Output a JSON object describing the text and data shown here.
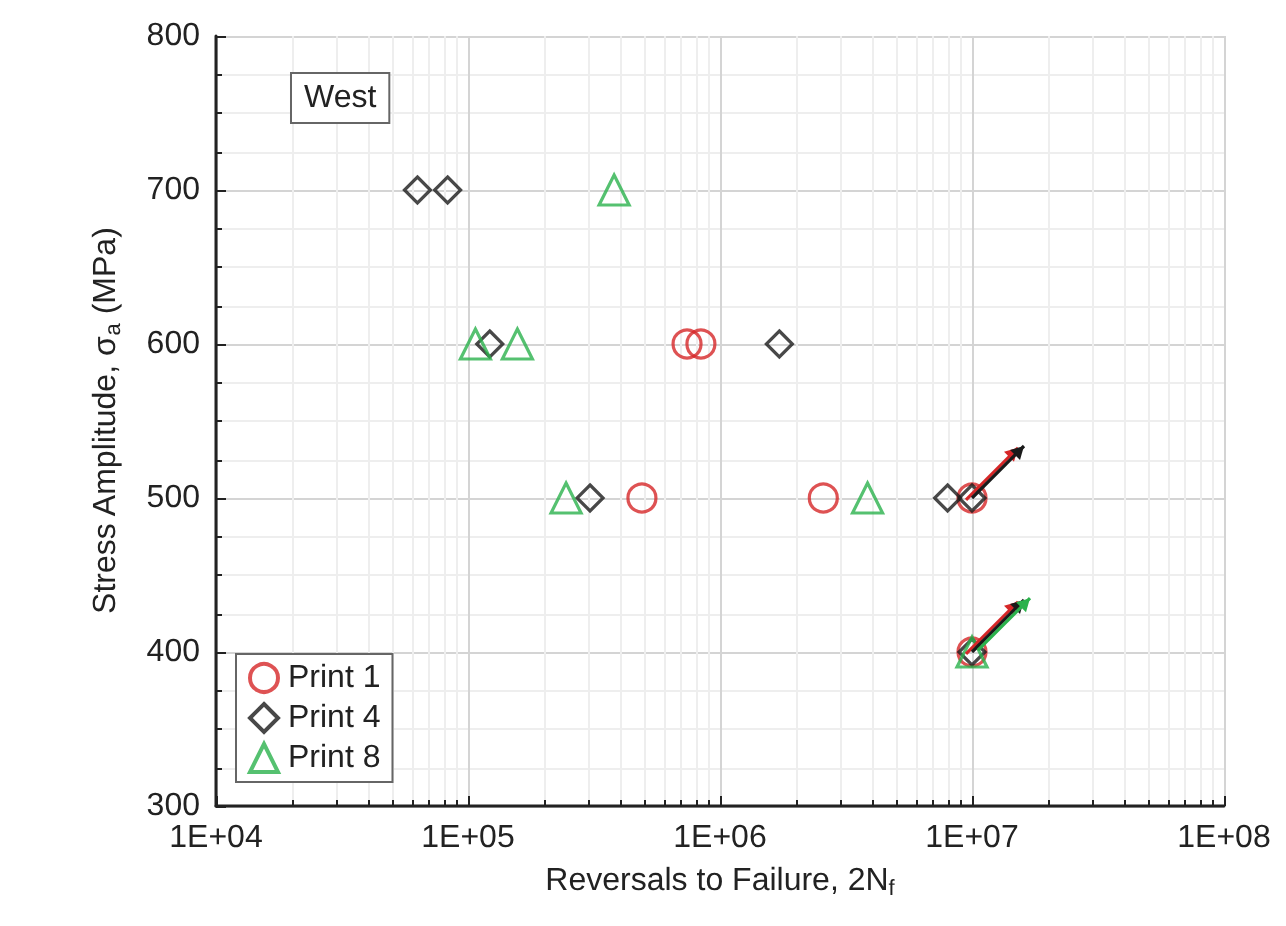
{
  "chart_data": {
    "type": "scatter",
    "xlabel": "Reversals to Failure, 2N$_{f}$",
    "ylabel": "Stress Amplitude, σ$_{a}$ (MPa)",
    "log": "x",
    "xlim": [
      10000,
      100000000
    ],
    "xticks": [
      {
        "value": 10000,
        "label": "1E+04"
      },
      {
        "value": 100000,
        "label": "1E+05"
      },
      {
        "value": 1000000,
        "label": "1E+06"
      },
      {
        "value": 10000000,
        "label": "1E+07"
      },
      {
        "value": 100000000,
        "label": "1E+08"
      }
    ],
    "ylim": [
      300,
      800
    ],
    "yticks": [
      300,
      400,
      500,
      600,
      700,
      800
    ],
    "grid": true,
    "legend": "bottom left",
    "annotations": [
      "West"
    ],
    "series": [
      {
        "name": "Print 1",
        "color": "#d62728",
        "marker": "circle",
        "x": [
          740000,
          840000,
          490000,
          2570000,
          10000000,
          10000000
        ],
        "values": [
          600,
          600,
          500,
          500,
          500,
          400
        ]
      },
      {
        "name": "Print 4",
        "color": "#1a1a1a",
        "marker": "diamond",
        "x": [
          63000,
          83000,
          122000,
          1720000,
          305000,
          8000000,
          10000000,
          10000000
        ],
        "values": [
          700,
          700,
          600,
          600,
          500,
          500,
          500,
          400
        ]
      },
      {
        "name": "Print 8",
        "color": "#2bb24c",
        "marker": "triangle",
        "x": [
          380000,
          107000,
          157000,
          245000,
          3850000,
          10000000
        ],
        "values": [
          700,
          600,
          600,
          500,
          500,
          400
        ]
      }
    ]
  }
}
